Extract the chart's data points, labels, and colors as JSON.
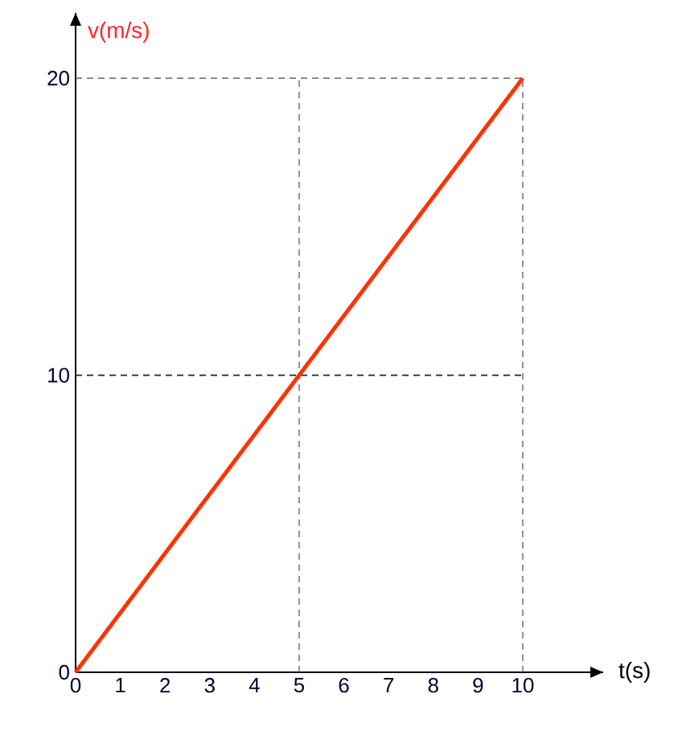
{
  "chart_data": {
    "type": "line",
    "xlabel": "t(s)",
    "ylabel": "v(m/s)",
    "xlim": [
      0,
      11.8
    ],
    "ylim": [
      0,
      22.2
    ],
    "xticks": [
      0,
      1,
      2,
      3,
      4,
      5,
      6,
      7,
      8,
      9,
      10
    ],
    "yticks": [
      0,
      10,
      20
    ],
    "series": [
      {
        "color": "#ff3300",
        "x": [
          0,
          10
        ],
        "values": [
          0,
          20
        ]
      }
    ],
    "ref_lines": [
      {
        "axis": "x",
        "value": 5,
        "color": "#666666",
        "line_style": "dashed"
      },
      {
        "axis": "x",
        "value": 10,
        "color": "#666666",
        "line_style": "dashed"
      },
      {
        "axis": "y",
        "value": 10,
        "color": "#222222",
        "line_style": "dashed"
      },
      {
        "axis": "y",
        "value": 20,
        "color": "#666666",
        "line_style": "dashed"
      }
    ]
  }
}
